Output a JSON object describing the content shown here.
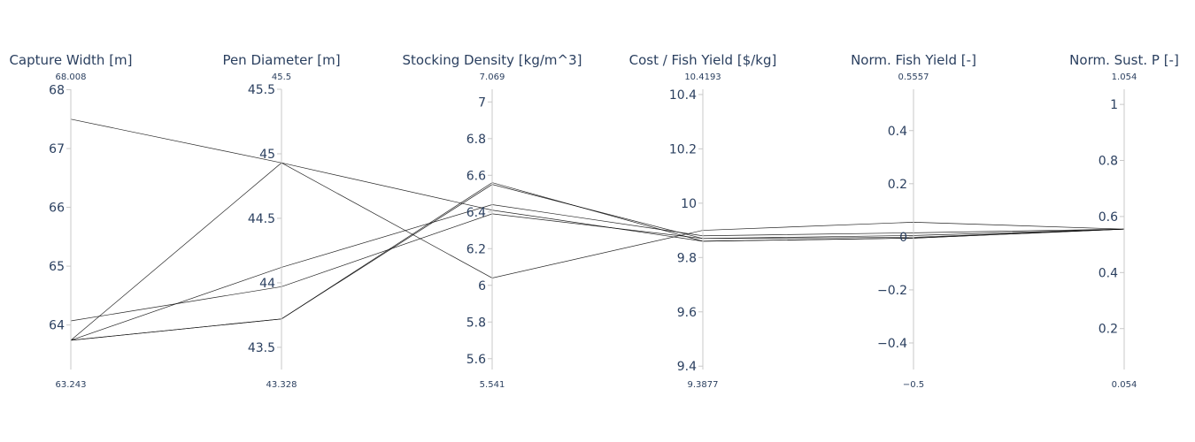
{
  "chart_data": {
    "type": "parcoords",
    "line_color": "#000000",
    "text_color": "#2a3f5f",
    "axis_color": "#c8c8c8",
    "dimensions": [
      {
        "label": "Capture Width [m]",
        "range": [
          63.243,
          68.008
        ],
        "range_min_label": "63.243",
        "range_max_label": "68.008",
        "ticks": [
          64,
          65,
          66,
          67,
          68
        ],
        "tick_labels": [
          "64",
          "65",
          "66",
          "67",
          "68"
        ]
      },
      {
        "label": "Pen Diameter [m]",
        "range": [
          43.328,
          45.5
        ],
        "range_min_label": "43.328",
        "range_max_label": "45.5",
        "ticks": [
          43.5,
          44,
          44.5,
          45,
          45.5
        ],
        "tick_labels": [
          "43.5",
          "44",
          "44.5",
          "45",
          "45.5"
        ]
      },
      {
        "label": "Stocking Density [kg/m^3]",
        "range": [
          5.541,
          7.069
        ],
        "range_min_label": "5.541",
        "range_max_label": "7.069",
        "ticks": [
          5.6,
          5.8,
          6,
          6.2,
          6.4,
          6.6,
          6.8,
          7
        ],
        "tick_labels": [
          "5.6",
          "5.8",
          "6",
          "6.2",
          "6.4",
          "6.6",
          "6.8",
          "7"
        ]
      },
      {
        "label": "Cost / Fish Yield [$/kg]",
        "range": [
          9.3877,
          10.4193
        ],
        "range_min_label": "9.3877",
        "range_max_label": "10.4193",
        "ticks": [
          9.4,
          9.6,
          9.8,
          10,
          10.2,
          10.4
        ],
        "tick_labels": [
          "9.4",
          "9.6",
          "9.8",
          "10",
          "10.2",
          "10.4"
        ]
      },
      {
        "label": "Norm. Fish Yield [-]",
        "range": [
          -0.5,
          0.5557
        ],
        "range_min_label": "−0.5",
        "range_max_label": "0.5557",
        "ticks": [
          -0.4,
          -0.2,
          0,
          0.2,
          0.4
        ],
        "tick_labels": [
          "−0.4",
          "−0.2",
          "0",
          "0.2",
          "0.4"
        ]
      },
      {
        "label": "Norm. Sust. P [-]",
        "range": [
          0.054,
          1.054
        ],
        "range_min_label": "0.054",
        "range_max_label": "1.054",
        "ticks": [
          0.2,
          0.4,
          0.6,
          0.8,
          1
        ],
        "tick_labels": [
          "0.2",
          "0.4",
          "0.6",
          "0.8",
          "1"
        ]
      }
    ],
    "records": [
      [
        67.5,
        44.93,
        6.41,
        9.86,
        -0.005,
        0.555
      ],
      [
        63.74,
        44.93,
        6.04,
        9.9,
        0.055,
        0.555
      ],
      [
        63.74,
        44.12,
        6.44,
        9.88,
        0.015,
        0.555
      ],
      [
        64.07,
        43.97,
        6.39,
        9.87,
        0.005,
        0.555
      ],
      [
        63.74,
        43.72,
        6.55,
        9.87,
        -0.002,
        0.555
      ],
      [
        63.74,
        43.72,
        6.56,
        9.86,
        -0.005,
        0.555
      ]
    ]
  }
}
